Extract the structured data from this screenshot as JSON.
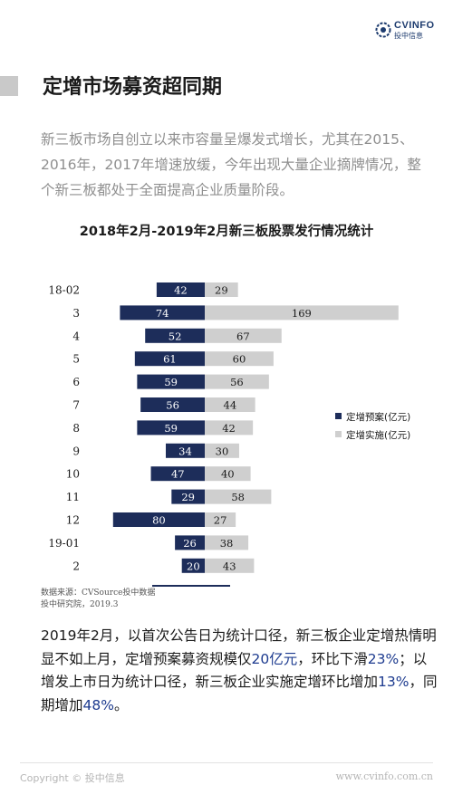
{
  "brand": {
    "logo_text": "CVINFO",
    "logo_sub": "投中信息",
    "colors": {
      "navy": "#1d2d5a",
      "gray_bar": "#cfcfcf",
      "accent_blue": "#1d3b8f"
    }
  },
  "page": {
    "title": "定增市场募资超同期",
    "intro": "新三板市场自创立以来市容量呈爆发式增长，尤其在2015、2016年，2017年增速放缓，今年出现大量企业摘牌情况，整个新三板都处于全面提高企业质量阶段。"
  },
  "chart_title": "2018年2月-2019年2月新三板股票发行情况统计",
  "chart_data": {
    "type": "bar",
    "orientation": "horizontal-diverging",
    "categories": [
      "18-02",
      "3",
      "4",
      "5",
      "6",
      "7",
      "8",
      "9",
      "10",
      "11",
      "12",
      "19-01",
      "2"
    ],
    "series": [
      {
        "name": "定增预案(亿元)",
        "color": "#1d2d5a",
        "side": "left",
        "values": [
          42,
          74,
          52,
          61,
          59,
          56,
          59,
          34,
          47,
          29,
          80,
          26,
          20
        ]
      },
      {
        "name": "定增实施(亿元)",
        "color": "#cfcfcf",
        "side": "right",
        "values": [
          29,
          169,
          67,
          60,
          56,
          44,
          42,
          30,
          40,
          58,
          27,
          38,
          43
        ]
      }
    ],
    "legend_position": "right",
    "grid": false
  },
  "source": {
    "line1": "数据来源：CVSource投中数据",
    "line2": "投中研究院，2019.3"
  },
  "summary": {
    "t1": "2019年2月，以首次公告日为统计口径，新三板企业定增热情明显不如上月，定增预案募资规模仅",
    "h1": "20亿元",
    "t2": "，环比下滑",
    "h2": "23%",
    "t3": "；以增发上市日为统计口径，新三板企业实施定增环比增加",
    "h3": "13%",
    "t4": "，同期增加",
    "h4": "48%",
    "t5": "。"
  },
  "footer": {
    "copyright": "Copyright © 投中信息",
    "url": "www.cvinfo.com.cn"
  }
}
